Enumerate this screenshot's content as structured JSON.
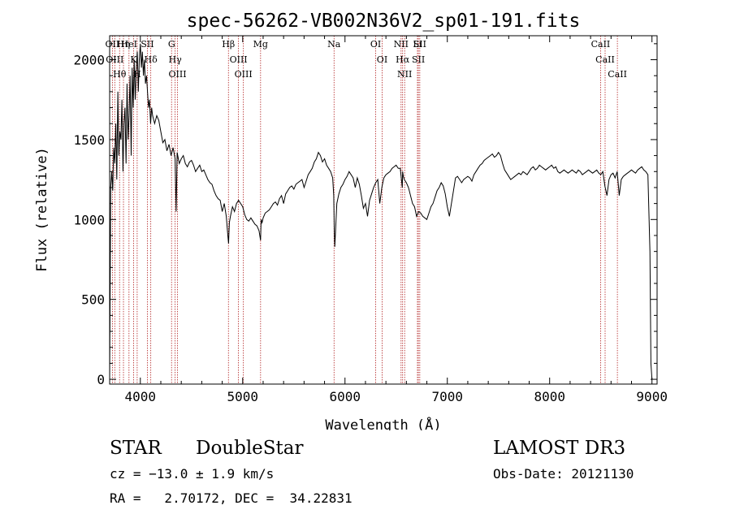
{
  "chart_data": {
    "type": "line",
    "title": "spec-56262-VB002N36V2_sp01-191.fits",
    "xlabel": "Wavelength (Å)",
    "ylabel": "Flux (relative)",
    "xlim": [
      3700,
      9050
    ],
    "ylim": [
      -30,
      2150
    ],
    "x_ticks": [
      4000,
      5000,
      6000,
      7000,
      8000,
      9000
    ],
    "y_ticks": [
      0,
      500,
      1000,
      1500,
      2000
    ],
    "grid": false,
    "line_color": "#000000",
    "marker_color": "#b22222",
    "series": [
      {
        "x": [
          3700,
          3710,
          3720,
          3730,
          3740,
          3750,
          3760,
          3770,
          3780,
          3790,
          3800,
          3810,
          3820,
          3830,
          3840,
          3850,
          3860,
          3870,
          3880,
          3890,
          3900,
          3910,
          3920,
          3930,
          3940,
          3950,
          3960,
          3970,
          3980,
          3990,
          4000,
          4010,
          4020,
          4030,
          4040,
          4050,
          4060,
          4070,
          4080,
          4090,
          4100,
          4110,
          4120,
          4140,
          4160,
          4180,
          4200,
          4220,
          4240,
          4260,
          4280,
          4300,
          4320,
          4340,
          4350,
          4360,
          4380,
          4400,
          4420,
          4440,
          4460,
          4480,
          4500,
          4520,
          4540,
          4560,
          4580,
          4600,
          4620,
          4640,
          4660,
          4680,
          4700,
          4720,
          4740,
          4760,
          4780,
          4800,
          4820,
          4840,
          4855,
          4862,
          4870,
          4880,
          4900,
          4920,
          4940,
          4960,
          4980,
          5000,
          5020,
          5040,
          5060,
          5080,
          5100,
          5120,
          5140,
          5160,
          5175,
          5180,
          5190,
          5200,
          5220,
          5240,
          5260,
          5280,
          5300,
          5320,
          5340,
          5360,
          5380,
          5400,
          5420,
          5440,
          5460,
          5480,
          5500,
          5520,
          5540,
          5560,
          5580,
          5600,
          5620,
          5640,
          5660,
          5680,
          5700,
          5720,
          5740,
          5760,
          5780,
          5800,
          5820,
          5840,
          5860,
          5880,
          5890,
          5895,
          5900,
          5910,
          5920,
          5940,
          5960,
          5980,
          6000,
          6020,
          6040,
          6060,
          6080,
          6100,
          6120,
          6140,
          6160,
          6180,
          6200,
          6220,
          6240,
          6260,
          6280,
          6300,
          6320,
          6340,
          6360,
          6380,
          6400,
          6420,
          6440,
          6460,
          6480,
          6500,
          6520,
          6540,
          6560,
          6563,
          6570,
          6580,
          6600,
          6620,
          6640,
          6660,
          6680,
          6700,
          6720,
          6740,
          6760,
          6780,
          6800,
          6820,
          6840,
          6860,
          6880,
          6900,
          6920,
          6940,
          6960,
          6980,
          7000,
          7020,
          7040,
          7060,
          7080,
          7100,
          7120,
          7140,
          7160,
          7180,
          7200,
          7220,
          7240,
          7260,
          7280,
          7300,
          7320,
          7340,
          7360,
          7380,
          7400,
          7420,
          7440,
          7460,
          7480,
          7500,
          7520,
          7540,
          7560,
          7580,
          7600,
          7620,
          7640,
          7660,
          7680,
          7700,
          7720,
          7740,
          7760,
          7780,
          7800,
          7820,
          7840,
          7860,
          7880,
          7900,
          7920,
          7940,
          7960,
          7980,
          8000,
          8020,
          8040,
          8060,
          8080,
          8100,
          8120,
          8140,
          8160,
          8180,
          8200,
          8220,
          8240,
          8260,
          8280,
          8300,
          8320,
          8340,
          8360,
          8380,
          8400,
          8420,
          8440,
          8460,
          8480,
          8500,
          8520,
          8540,
          8560,
          8580,
          8600,
          8620,
          8640,
          8660,
          8680,
          8700,
          8720,
          8740,
          8760,
          8780,
          8800,
          8820,
          8840,
          8860,
          8880,
          8900,
          8920,
          8940,
          8960,
          8970,
          8980,
          8990,
          9000
        ],
        "y": [
          0,
          1200,
          1300,
          1180,
          1450,
          1350,
          1600,
          1250,
          1800,
          1400,
          1550,
          1500,
          1750,
          1300,
          1600,
          1700,
          1350,
          1850,
          1500,
          1650,
          1900,
          1400,
          1950,
          1700,
          2000,
          1750,
          1950,
          2050,
          1800,
          2000,
          2100,
          1950,
          2050,
          1900,
          2000,
          1850,
          1900,
          1800,
          1700,
          1750,
          1600,
          1700,
          1650,
          1600,
          1650,
          1620,
          1550,
          1480,
          1500,
          1430,
          1470,
          1400,
          1450,
          1380,
          1050,
          1420,
          1350,
          1380,
          1400,
          1350,
          1330,
          1360,
          1370,
          1340,
          1300,
          1320,
          1340,
          1300,
          1310,
          1280,
          1250,
          1230,
          1220,
          1180,
          1150,
          1130,
          1120,
          1050,
          1100,
          1020,
          900,
          850,
          980,
          1020,
          1080,
          1050,
          1100,
          1120,
          1100,
          1080,
          1030,
          1000,
          990,
          1010,
          990,
          970,
          960,
          930,
          870,
          1000,
          980,
          1010,
          1040,
          1050,
          1060,
          1080,
          1100,
          1110,
          1090,
          1130,
          1150,
          1100,
          1160,
          1180,
          1200,
          1210,
          1190,
          1220,
          1230,
          1240,
          1250,
          1200,
          1240,
          1280,
          1300,
          1320,
          1360,
          1380,
          1420,
          1400,
          1360,
          1380,
          1340,
          1320,
          1300,
          1260,
          1150,
          950,
          830,
          960,
          1100,
          1160,
          1200,
          1220,
          1250,
          1270,
          1300,
          1280,
          1260,
          1200,
          1260,
          1220,
          1150,
          1070,
          1100,
          1020,
          1120,
          1160,
          1200,
          1230,
          1250,
          1100,
          1200,
          1260,
          1280,
          1290,
          1300,
          1320,
          1330,
          1340,
          1320,
          1320,
          1200,
          1300,
          1270,
          1250,
          1230,
          1200,
          1150,
          1100,
          1080,
          1020,
          1050,
          1040,
          1020,
          1010,
          1000,
          1040,
          1080,
          1100,
          1140,
          1180,
          1200,
          1230,
          1210,
          1160,
          1080,
          1020,
          1100,
          1180,
          1260,
          1270,
          1250,
          1230,
          1250,
          1260,
          1270,
          1260,
          1240,
          1280,
          1300,
          1320,
          1340,
          1350,
          1370,
          1380,
          1390,
          1400,
          1410,
          1390,
          1400,
          1420,
          1400,
          1350,
          1310,
          1290,
          1270,
          1250,
          1260,
          1270,
          1280,
          1290,
          1280,
          1300,
          1290,
          1280,
          1300,
          1320,
          1330,
          1310,
          1320,
          1340,
          1330,
          1320,
          1310,
          1320,
          1330,
          1340,
          1320,
          1330,
          1300,
          1290,
          1300,
          1310,
          1300,
          1290,
          1300,
          1310,
          1300,
          1290,
          1310,
          1300,
          1280,
          1290,
          1300,
          1310,
          1300,
          1290,
          1300,
          1310,
          1290,
          1280,
          1300,
          1210,
          1150,
          1250,
          1280,
          1290,
          1260,
          1300,
          1150,
          1250,
          1270,
          1280,
          1290,
          1300,
          1310,
          1300,
          1290,
          1310,
          1320,
          1330,
          1310,
          1300,
          1280,
          1050,
          800,
          100,
          0
        ]
      }
    ],
    "lines": [
      {
        "label": "Hθ",
        "x": 3797
      },
      {
        "label": "OII",
        "x": 3727
      },
      {
        "label": "OIII",
        "x": 3750
      },
      {
        "label": "Hη",
        "x": 3835
      },
      {
        "label": "HeI",
        "x": 3889
      },
      {
        "label": "K",
        "x": 3934
      },
      {
        "label": "H",
        "x": 3969
      },
      {
        "label": "SII",
        "x": 4069
      },
      {
        "label": "Hδ",
        "x": 4102
      },
      {
        "label": "OIII",
        "x": 4363
      },
      {
        "label": "Hγ",
        "x": 4340
      },
      {
        "label": "G",
        "x": 4305
      },
      {
        "label": "Hβ",
        "x": 4861
      },
      {
        "label": "OIII",
        "x": 4959
      },
      {
        "label": "OIII",
        "x": 5007
      },
      {
        "label": "Mg",
        "x": 5175
      },
      {
        "label": "Na",
        "x": 5893
      },
      {
        "label": "OI",
        "x": 6300
      },
      {
        "label": "OI",
        "x": 6363
      },
      {
        "label": "Hα",
        "x": 6563
      },
      {
        "label": "NII",
        "x": 6548
      },
      {
        "label": "NII",
        "x": 6583
      },
      {
        "label": "SII",
        "x": 6717
      },
      {
        "label": "Li",
        "x": 6708
      },
      {
        "label": "SII",
        "x": 6731
      },
      {
        "label": "CaII",
        "x": 8498
      },
      {
        "label": "CaII",
        "x": 8542
      },
      {
        "label": "CaII",
        "x": 8662
      }
    ]
  },
  "info": {
    "object_class": "STAR",
    "subclass": "DoubleStar",
    "survey": "LAMOST DR3",
    "cz": "cz = −13.0 ± 1.9 km/s",
    "obs_date": "Obs-Date: 20121130",
    "coords": "RA =   2.70172, DEC =  34.22831"
  }
}
